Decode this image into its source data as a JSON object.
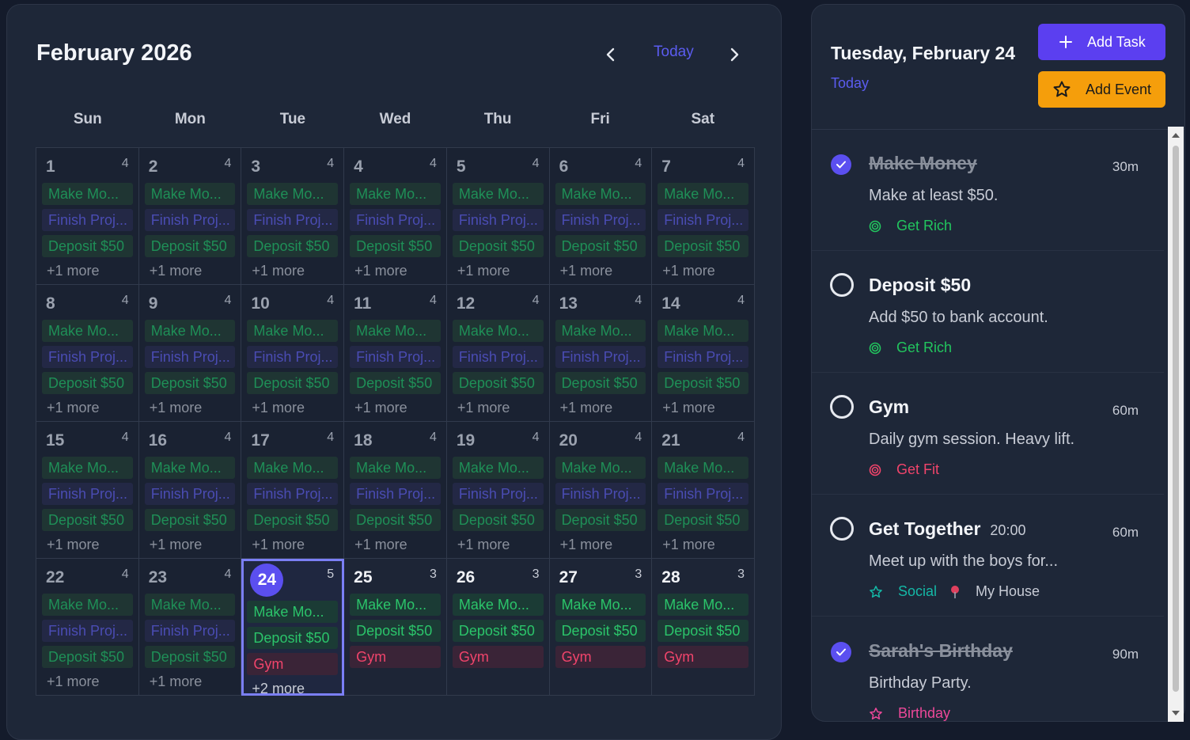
{
  "calendar": {
    "title": "February 2026",
    "today_label": "Today",
    "weekdays": [
      "Sun",
      "Mon",
      "Tue",
      "Wed",
      "Thu",
      "Fri",
      "Sat"
    ],
    "days": [
      {
        "n": "1",
        "count": "4",
        "state": "past",
        "events": [
          {
            "t": "Make Mo...",
            "c": "green"
          },
          {
            "t": "Finish Proj...",
            "c": "indigo"
          },
          {
            "t": "Deposit $50",
            "c": "green"
          }
        ],
        "more": "+1 more"
      },
      {
        "n": "2",
        "count": "4",
        "state": "past",
        "events": [
          {
            "t": "Make Mo...",
            "c": "green"
          },
          {
            "t": "Finish Proj...",
            "c": "indigo"
          },
          {
            "t": "Deposit $50",
            "c": "green"
          }
        ],
        "more": "+1 more"
      },
      {
        "n": "3",
        "count": "4",
        "state": "past",
        "events": [
          {
            "t": "Make Mo...",
            "c": "green"
          },
          {
            "t": "Finish Proj...",
            "c": "indigo"
          },
          {
            "t": "Deposit $50",
            "c": "green"
          }
        ],
        "more": "+1 more"
      },
      {
        "n": "4",
        "count": "4",
        "state": "past",
        "events": [
          {
            "t": "Make Mo...",
            "c": "green"
          },
          {
            "t": "Finish Proj...",
            "c": "indigo"
          },
          {
            "t": "Deposit $50",
            "c": "green"
          }
        ],
        "more": "+1 more"
      },
      {
        "n": "5",
        "count": "4",
        "state": "past",
        "events": [
          {
            "t": "Make Mo...",
            "c": "green"
          },
          {
            "t": "Finish Proj...",
            "c": "indigo"
          },
          {
            "t": "Deposit $50",
            "c": "green"
          }
        ],
        "more": "+1 more"
      },
      {
        "n": "6",
        "count": "4",
        "state": "past",
        "events": [
          {
            "t": "Make Mo...",
            "c": "green"
          },
          {
            "t": "Finish Proj...",
            "c": "indigo"
          },
          {
            "t": "Deposit $50",
            "c": "green"
          }
        ],
        "more": "+1 more"
      },
      {
        "n": "7",
        "count": "4",
        "state": "past",
        "events": [
          {
            "t": "Make Mo...",
            "c": "green"
          },
          {
            "t": "Finish Proj...",
            "c": "indigo"
          },
          {
            "t": "Deposit $50",
            "c": "green"
          }
        ],
        "more": "+1 more"
      },
      {
        "n": "8",
        "count": "4",
        "state": "past",
        "events": [
          {
            "t": "Make Mo...",
            "c": "green"
          },
          {
            "t": "Finish Proj...",
            "c": "indigo"
          },
          {
            "t": "Deposit $50",
            "c": "green"
          }
        ],
        "more": "+1 more"
      },
      {
        "n": "9",
        "count": "4",
        "state": "past",
        "events": [
          {
            "t": "Make Mo...",
            "c": "green"
          },
          {
            "t": "Finish Proj...",
            "c": "indigo"
          },
          {
            "t": "Deposit $50",
            "c": "green"
          }
        ],
        "more": "+1 more"
      },
      {
        "n": "10",
        "count": "4",
        "state": "past",
        "events": [
          {
            "t": "Make Mo...",
            "c": "green"
          },
          {
            "t": "Finish Proj...",
            "c": "indigo"
          },
          {
            "t": "Deposit $50",
            "c": "green"
          }
        ],
        "more": "+1 more"
      },
      {
        "n": "11",
        "count": "4",
        "state": "past",
        "events": [
          {
            "t": "Make Mo...",
            "c": "green"
          },
          {
            "t": "Finish Proj...",
            "c": "indigo"
          },
          {
            "t": "Deposit $50",
            "c": "green"
          }
        ],
        "more": "+1 more"
      },
      {
        "n": "12",
        "count": "4",
        "state": "past",
        "events": [
          {
            "t": "Make Mo...",
            "c": "green"
          },
          {
            "t": "Finish Proj...",
            "c": "indigo"
          },
          {
            "t": "Deposit $50",
            "c": "green"
          }
        ],
        "more": "+1 more"
      },
      {
        "n": "13",
        "count": "4",
        "state": "past",
        "events": [
          {
            "t": "Make Mo...",
            "c": "green"
          },
          {
            "t": "Finish Proj...",
            "c": "indigo"
          },
          {
            "t": "Deposit $50",
            "c": "green"
          }
        ],
        "more": "+1 more"
      },
      {
        "n": "14",
        "count": "4",
        "state": "past",
        "events": [
          {
            "t": "Make Mo...",
            "c": "green"
          },
          {
            "t": "Finish Proj...",
            "c": "indigo"
          },
          {
            "t": "Deposit $50",
            "c": "green"
          }
        ],
        "more": "+1 more"
      },
      {
        "n": "15",
        "count": "4",
        "state": "past",
        "events": [
          {
            "t": "Make Mo...",
            "c": "green"
          },
          {
            "t": "Finish Proj...",
            "c": "indigo"
          },
          {
            "t": "Deposit $50",
            "c": "green"
          }
        ],
        "more": "+1 more"
      },
      {
        "n": "16",
        "count": "4",
        "state": "past",
        "events": [
          {
            "t": "Make Mo...",
            "c": "green"
          },
          {
            "t": "Finish Proj...",
            "c": "indigo"
          },
          {
            "t": "Deposit $50",
            "c": "green"
          }
        ],
        "more": "+1 more"
      },
      {
        "n": "17",
        "count": "4",
        "state": "past",
        "events": [
          {
            "t": "Make Mo...",
            "c": "green"
          },
          {
            "t": "Finish Proj...",
            "c": "indigo"
          },
          {
            "t": "Deposit $50",
            "c": "green"
          }
        ],
        "more": "+1 more"
      },
      {
        "n": "18",
        "count": "4",
        "state": "past",
        "events": [
          {
            "t": "Make Mo...",
            "c": "green"
          },
          {
            "t": "Finish Proj...",
            "c": "indigo"
          },
          {
            "t": "Deposit $50",
            "c": "green"
          }
        ],
        "more": "+1 more"
      },
      {
        "n": "19",
        "count": "4",
        "state": "past",
        "events": [
          {
            "t": "Make Mo...",
            "c": "green"
          },
          {
            "t": "Finish Proj...",
            "c": "indigo"
          },
          {
            "t": "Deposit $50",
            "c": "green"
          }
        ],
        "more": "+1 more"
      },
      {
        "n": "20",
        "count": "4",
        "state": "past",
        "events": [
          {
            "t": "Make Mo...",
            "c": "green"
          },
          {
            "t": "Finish Proj...",
            "c": "indigo"
          },
          {
            "t": "Deposit $50",
            "c": "green"
          }
        ],
        "more": "+1 more"
      },
      {
        "n": "21",
        "count": "4",
        "state": "past",
        "events": [
          {
            "t": "Make Mo...",
            "c": "green"
          },
          {
            "t": "Finish Proj...",
            "c": "indigo"
          },
          {
            "t": "Deposit $50",
            "c": "green"
          }
        ],
        "more": "+1 more"
      },
      {
        "n": "22",
        "count": "4",
        "state": "past",
        "events": [
          {
            "t": "Make Mo...",
            "c": "green"
          },
          {
            "t": "Finish Proj...",
            "c": "indigo"
          },
          {
            "t": "Deposit $50",
            "c": "green"
          }
        ],
        "more": "+1 more"
      },
      {
        "n": "23",
        "count": "4",
        "state": "past",
        "events": [
          {
            "t": "Make Mo...",
            "c": "green"
          },
          {
            "t": "Finish Proj...",
            "c": "indigo"
          },
          {
            "t": "Deposit $50",
            "c": "green"
          }
        ],
        "more": "+1 more"
      },
      {
        "n": "24",
        "count": "5",
        "state": "selected",
        "events": [
          {
            "t": "Make Mo...",
            "c": "green"
          },
          {
            "t": "Deposit $50",
            "c": "green"
          },
          {
            "t": "Gym",
            "c": "red"
          }
        ],
        "more": "+2 more"
      },
      {
        "n": "25",
        "count": "3",
        "state": "future",
        "events": [
          {
            "t": "Make Mo...",
            "c": "green"
          },
          {
            "t": "Deposit $50",
            "c": "green"
          },
          {
            "t": "Gym",
            "c": "red"
          }
        ],
        "more": ""
      },
      {
        "n": "26",
        "count": "3",
        "state": "future",
        "events": [
          {
            "t": "Make Mo...",
            "c": "green"
          },
          {
            "t": "Deposit $50",
            "c": "green"
          },
          {
            "t": "Gym",
            "c": "red"
          }
        ],
        "more": ""
      },
      {
        "n": "27",
        "count": "3",
        "state": "future",
        "events": [
          {
            "t": "Make Mo...",
            "c": "green"
          },
          {
            "t": "Deposit $50",
            "c": "green"
          },
          {
            "t": "Gym",
            "c": "red"
          }
        ],
        "more": ""
      },
      {
        "n": "28",
        "count": "3",
        "state": "future",
        "events": [
          {
            "t": "Make Mo...",
            "c": "green"
          },
          {
            "t": "Deposit $50",
            "c": "green"
          },
          {
            "t": "Gym",
            "c": "red"
          }
        ],
        "more": ""
      }
    ]
  },
  "sidebar": {
    "date_title": "Tuesday, February 24",
    "today_label": "Today",
    "add_task_label": "Add Task",
    "add_event_label": "Add Event",
    "items": [
      {
        "title": "Make Money",
        "time": "",
        "duration": "30m",
        "desc": "Make at least $50.",
        "done": true,
        "tags": [
          {
            "label": "Get Rich",
            "icon": "target-icon",
            "color": "#22c55e"
          }
        ]
      },
      {
        "title": "Deposit $50",
        "time": "",
        "duration": "",
        "desc": "Add $50 to bank account.",
        "done": false,
        "tags": [
          {
            "label": "Get Rich",
            "icon": "target-icon",
            "color": "#22c55e"
          }
        ]
      },
      {
        "title": "Gym",
        "time": "",
        "duration": "60m",
        "desc": "Daily gym session. Heavy lift.",
        "done": false,
        "tags": [
          {
            "label": "Get Fit",
            "icon": "target-icon",
            "color": "#f0446b"
          }
        ]
      },
      {
        "title": "Get Together",
        "time": "20:00",
        "duration": "60m",
        "desc": "Meet up with the boys for...",
        "done": false,
        "tags": [
          {
            "label": "Social",
            "icon": "star-icon",
            "color": "#14b8a6"
          },
          {
            "label": "My House",
            "icon": "pin-icon",
            "color": "#c8ccd6"
          }
        ]
      },
      {
        "title": "Sarah's Birthday",
        "time": "",
        "duration": "90m",
        "desc": "Birthday Party.",
        "done": true,
        "tags": [
          {
            "label": "Birthday",
            "icon": "star-icon",
            "color": "#ec4899"
          }
        ]
      }
    ]
  }
}
